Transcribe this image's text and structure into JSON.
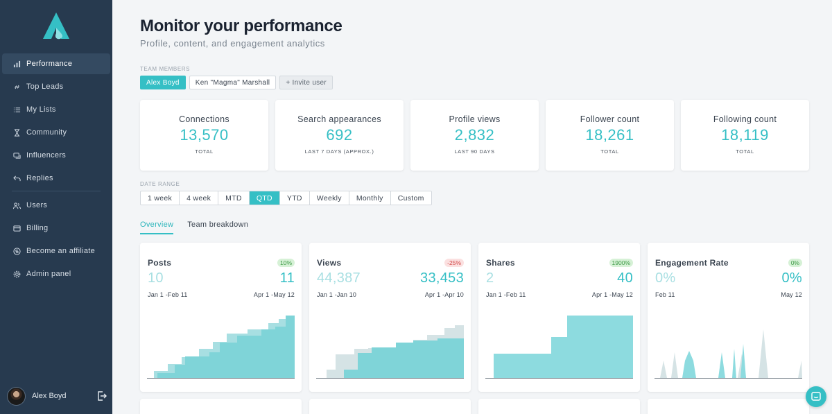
{
  "sidebar": {
    "items": [
      {
        "label": "Performance",
        "icon": "bar-chart-icon",
        "active": true
      },
      {
        "label": "Top Leads",
        "icon": "link-icon"
      },
      {
        "label": "My Lists",
        "icon": "list-icon"
      },
      {
        "label": "Community",
        "icon": "hourglass-icon"
      },
      {
        "label": "Influencers",
        "icon": "chat-icon"
      },
      {
        "label": "Replies",
        "icon": "reply-icon"
      }
    ],
    "items2": [
      {
        "label": "Users",
        "icon": "users-icon"
      },
      {
        "label": "Billing",
        "icon": "credit-card-icon"
      },
      {
        "label": "Become an affiliate",
        "icon": "dollar-icon"
      },
      {
        "label": "Admin panel",
        "icon": "gear-icon"
      }
    ],
    "user": {
      "name": "Alex Boyd"
    }
  },
  "header": {
    "title": "Monitor your performance",
    "subtitle": "Profile, content, and engagement analytics"
  },
  "team": {
    "label": "TEAM MEMBERS",
    "members": [
      "Alex Boyd",
      "Ken \"Magma\" Marshall"
    ],
    "invite": "+ Invite user"
  },
  "stats": [
    {
      "title": "Connections",
      "value": "13,570",
      "sub": "TOTAL"
    },
    {
      "title": "Search appearances",
      "value": "692",
      "sub": "LAST 7 DAYS (APPROX.)"
    },
    {
      "title": "Profile views",
      "value": "2,832",
      "sub": "LAST 90 DAYS"
    },
    {
      "title": "Follower count",
      "value": "18,261",
      "sub": "TOTAL"
    },
    {
      "title": "Following count",
      "value": "18,119",
      "sub": "TOTAL"
    }
  ],
  "date_range": {
    "label": "DATE RANGE",
    "options": [
      "1 week",
      "4 week",
      "MTD",
      "QTD",
      "YTD",
      "Weekly",
      "Monthly",
      "Custom"
    ],
    "selected": "QTD"
  },
  "tabs": [
    "Overview",
    "Team breakdown"
  ],
  "metrics": [
    {
      "title": "Posts",
      "badge": "10%",
      "trend": "pos",
      "prev": "10",
      "cur": "11",
      "prev_range": "Jan 1 -Feb 11",
      "cur_range": "Apr 1 -May 12"
    },
    {
      "title": "Views",
      "badge": "-25%",
      "trend": "neg",
      "prev": "44,387",
      "cur": "33,453",
      "prev_range": "Jan 1 -Jan 10",
      "cur_range": "Apr 1 -Apr 10"
    },
    {
      "title": "Shares",
      "badge": "1900%",
      "trend": "pos",
      "prev": "2",
      "cur": "40",
      "prev_range": "Jan 1 -Feb 11",
      "cur_range": "Apr 1 -May 12"
    },
    {
      "title": "Engagement Rate",
      "badge": "0%",
      "trend": "pos",
      "prev": "0%",
      "cur": "0%",
      "prev_range": "Feb 11",
      "cur_range": "May 12"
    }
  ],
  "colors": {
    "accent": "#35bfc5",
    "accent_light": "#a8dfe2",
    "sidebar": "#273a4f"
  }
}
